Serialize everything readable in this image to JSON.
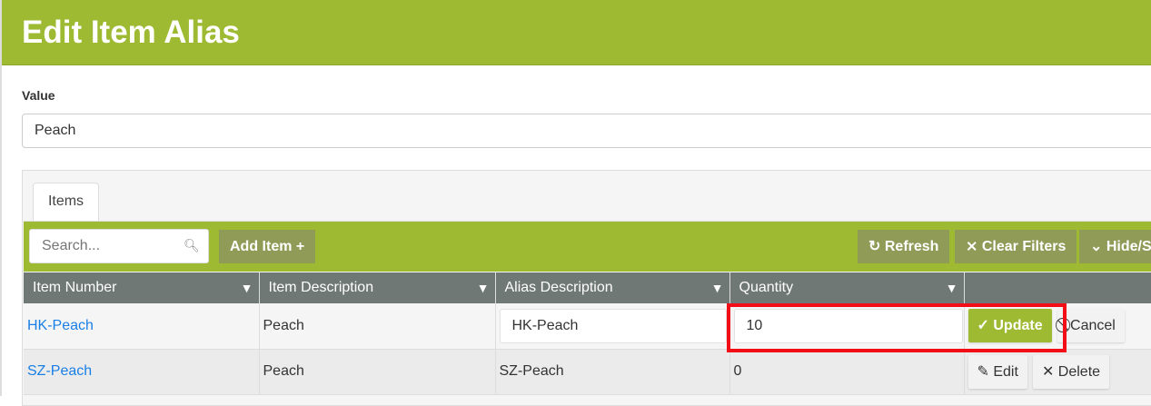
{
  "title": "Edit Item Alias",
  "value_label": "Value",
  "value": "Peach",
  "tab": "Items",
  "toolbar": {
    "search_placeholder": "Search...",
    "add_item": "Add Item",
    "refresh": "Refresh",
    "clear_filters": "Clear Filters",
    "hide_show": "Hide/Show"
  },
  "columns": [
    "Item Number",
    "Item Description",
    "Alias Description",
    "Quantity"
  ],
  "rows": [
    {
      "item_number": "HK-Peach",
      "item_description": "Peach",
      "alias_description": "HK-Peach",
      "quantity": "10",
      "actions": [
        "Update",
        "Cancel"
      ],
      "editing": true
    },
    {
      "item_number": "SZ-Peach",
      "item_description": "Peach",
      "alias_description": "SZ-Peach",
      "quantity": "0",
      "actions": [
        "Edit",
        "Delete"
      ],
      "editing": false
    }
  ],
  "colors": {
    "brand": "#9dba32",
    "header": "#6f7875",
    "highlight": "#f20d17",
    "link": "#1a7fe6"
  }
}
